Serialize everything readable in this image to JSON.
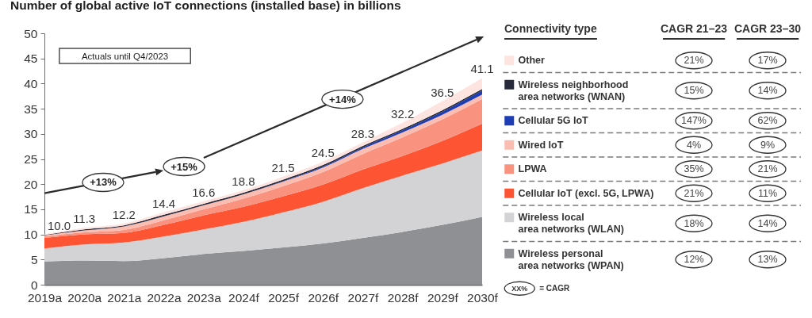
{
  "chart_data": {
    "type": "area",
    "title": "Number of global active IoT connections (installed base) in billions",
    "categories": [
      "2019a",
      "2020a",
      "2021a",
      "2022a",
      "2023a",
      "2024f",
      "2025f",
      "2026f",
      "2027f",
      "2028f",
      "2029f",
      "2030f"
    ],
    "series": [
      {
        "name": "Wireless personal area networks (WPAN)",
        "color": "#8f9093",
        "values": [
          4.6,
          4.8,
          4.7,
          5.3,
          6.1,
          6.7,
          7.4,
          8.2,
          9.3,
          10.5,
          11.9,
          13.5
        ]
      },
      {
        "name": "Wireless local area networks (WLAN)",
        "color": "#d3d3d5",
        "values": [
          2.6,
          3.2,
          3.7,
          4.3,
          4.9,
          5.8,
          7.0,
          8.3,
          9.9,
          11.2,
          12.2,
          13.2
        ]
      },
      {
        "name": "Cellular IoT (excl. 5G, LPWA)",
        "color": "#fd5533",
        "values": [
          2.1,
          2.0,
          1.9,
          2.3,
          2.8,
          3.0,
          3.2,
          3.4,
          3.7,
          3.9,
          4.5,
          5.3
        ]
      },
      {
        "name": "LPWA",
        "color": "#f9927f",
        "values": [
          0.3,
          0.4,
          0.6,
          0.9,
          1.2,
          1.6,
          2.0,
          2.5,
          3.1,
          3.7,
          4.3,
          4.9
        ]
      },
      {
        "name": "Wired IoT",
        "color": "#fbbdb1",
        "values": [
          0.2,
          0.4,
          0.7,
          0.8,
          0.8,
          0.9,
          0.9,
          0.9,
          1.0,
          1.0,
          0.9,
          0.9
        ]
      },
      {
        "name": "Cellular 5G IoT",
        "color": "#1d3db6",
        "values": [
          0,
          0,
          0,
          0,
          0,
          0,
          0.1,
          0.2,
          0.3,
          0.4,
          0.6,
          0.8
        ]
      },
      {
        "name": "Wireless neighborhood area networks (WNAN)",
        "color": "#262a3b",
        "values": [
          0.1,
          0.2,
          0.2,
          0.3,
          0.3,
          0.3,
          0.3,
          0.3,
          0.3,
          0.3,
          0.3,
          0.3
        ]
      },
      {
        "name": "Other",
        "color": "#fde4e0",
        "values": [
          0.1,
          0.3,
          0.4,
          0.5,
          0.5,
          0.5,
          0.6,
          0.7,
          0.7,
          1.2,
          1.8,
          2.2
        ]
      }
    ],
    "stacked": true,
    "ylim": [
      0,
      50
    ],
    "yticks": [
      0,
      5,
      10,
      15,
      20,
      25,
      30,
      35,
      40,
      45,
      50
    ],
    "legend": "right",
    "legend_title": "Connectivity type",
    "totals": [
      "10.0",
      "11.3",
      "12.2",
      "14.4",
      "16.6",
      "18.8",
      "21.5",
      "24.5",
      "28.3",
      "32.2",
      "36.5",
      "41.1"
    ],
    "annotations": [
      "Actuals until Q4/2023",
      "+13%",
      "+15%",
      "+14%",
      "CAGR 21–23",
      "CAGR 23–30",
      "21%",
      "17%",
      "15%",
      "14%",
      "147%",
      "62%",
      "4%",
      "9%",
      "35%",
      "21%",
      "21%",
      "11%",
      "18%",
      "14%",
      "12%",
      "13%",
      "XX%",
      "= CAGR"
    ]
  }
}
